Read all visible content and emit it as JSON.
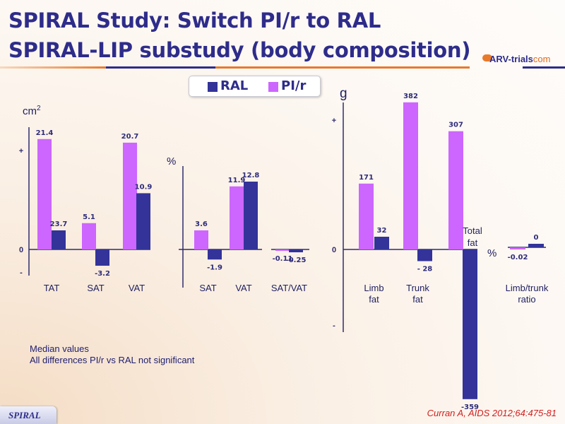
{
  "slide": {
    "title_line1": "SPIRAL Study: Switch PI/r to RAL",
    "title_line2": "SPIRAL-LIP substudy (body composition)",
    "logo_text": "ARV-trials",
    "logo_suffix": "com",
    "notes": [
      "Median values",
      "All differences PI/r vs RAL not significant"
    ],
    "badge": "SPIRAL",
    "citation": "Curran A, AIDS 2012;64:475-81",
    "colors": {
      "RAL": "#33339a",
      "PI/r": "#cc66ff",
      "axis": "#2e2c6e",
      "title": "#2e2c8a",
      "citation": "#d0201e"
    }
  },
  "legend": [
    {
      "name": "RAL",
      "color": "#33339a"
    },
    {
      "name": "PI/r",
      "color": "#cc66ff"
    }
  ],
  "chart_data": [
    {
      "type": "bar",
      "unit_label": "cm",
      "unit_sup": "2",
      "yticks": [
        "+",
        "0",
        "-"
      ],
      "categories": [
        "TAT",
        "SAT",
        "VAT"
      ],
      "series": [
        {
          "name": "PI/r",
          "values": [
            21.4,
            5.1,
            20.7
          ],
          "labels": [
            "21.4",
            "5.1",
            "20.7"
          ]
        },
        {
          "name": "RAL",
          "values": [
            23.7,
            -3.2,
            10.9
          ],
          "labels": [
            "23.7",
            "-3.2",
            "10.9"
          ]
        }
      ]
    },
    {
      "type": "bar",
      "unit_label": "%",
      "categories": [
        "SAT",
        "VAT",
        "SAT/VAT"
      ],
      "series": [
        {
          "name": "PI/r",
          "values": [
            3.6,
            11.9,
            -0.11
          ],
          "labels": [
            "3.6",
            "11.9",
            "-0.11"
          ]
        },
        {
          "name": "RAL",
          "values": [
            -1.9,
            12.8,
            -0.25
          ],
          "labels": [
            "-1.9",
            "12.8",
            "-0.25"
          ]
        }
      ]
    },
    {
      "type": "bar",
      "unit_label": "g",
      "yticks": [
        "+",
        "0",
        "-"
      ],
      "categories": [
        "Limb fat",
        "Trunk fat",
        "Total fat"
      ],
      "category_lines": [
        [
          "Limb",
          "fat"
        ],
        [
          "Trunk",
          "fat"
        ],
        [
          "Total",
          "fat"
        ]
      ],
      "series": [
        {
          "name": "PI/r",
          "values": [
            171,
            382,
            307
          ],
          "labels": [
            "171",
            "382",
            "307"
          ]
        },
        {
          "name": "RAL",
          "values": [
            32,
            -28,
            -359
          ],
          "labels": [
            "32",
            "- 28",
            "-359"
          ]
        }
      ]
    },
    {
      "type": "bar",
      "unit_label": "%",
      "categories": [
        "Limb/trunk ratio"
      ],
      "category_lines": [
        [
          "Limb/trunk",
          "ratio"
        ]
      ],
      "series": [
        {
          "name": "PI/r",
          "values": [
            -0.02
          ],
          "labels": [
            "-0.02"
          ]
        },
        {
          "name": "RAL",
          "values": [
            0
          ],
          "labels": [
            "0"
          ]
        }
      ]
    }
  ]
}
